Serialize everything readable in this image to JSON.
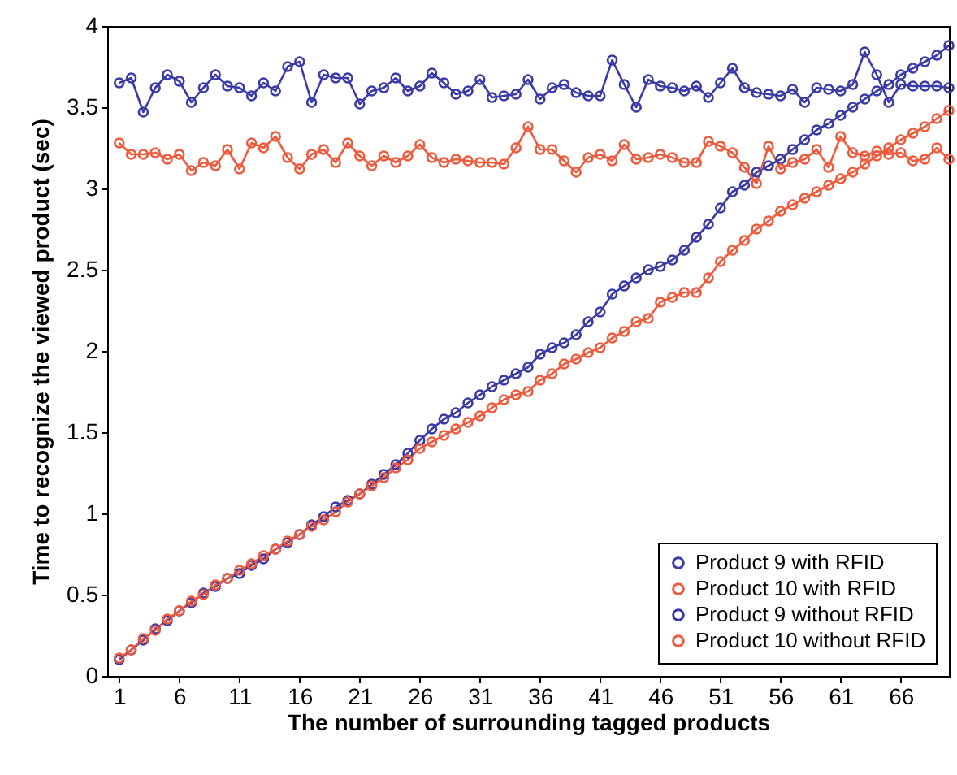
{
  "chart_data": {
    "type": "line",
    "xlabel": "The number of surrounding tagged products",
    "ylabel": "Time to recognize the viewed product (sec)",
    "x": [
      1,
      2,
      3,
      4,
      5,
      6,
      7,
      8,
      9,
      10,
      11,
      12,
      13,
      14,
      15,
      16,
      17,
      18,
      19,
      20,
      21,
      22,
      23,
      24,
      25,
      26,
      27,
      28,
      29,
      30,
      31,
      32,
      33,
      34,
      35,
      36,
      37,
      38,
      39,
      40,
      41,
      42,
      43,
      44,
      45,
      46,
      47,
      48,
      49,
      50,
      51,
      52,
      53,
      54,
      55,
      56,
      57,
      58,
      59,
      60,
      61,
      62,
      63,
      64,
      65,
      66,
      67,
      68,
      69,
      70
    ],
    "xlim": [
      0,
      70
    ],
    "xticks": [
      1,
      6,
      11,
      16,
      21,
      26,
      31,
      36,
      41,
      46,
      51,
      56,
      61,
      66
    ],
    "ylim": [
      0,
      4
    ],
    "yticks": [
      0,
      0.5,
      1,
      1.5,
      2,
      2.5,
      3,
      3.5,
      4
    ],
    "grid": false,
    "legend": "bottom right",
    "marker": "circle",
    "line_style": "solid",
    "series": [
      {
        "name": "Product 9 with RFID",
        "color": "#3a3aa8",
        "values": [
          0.1,
          0.16,
          0.22,
          0.29,
          0.34,
          0.4,
          0.45,
          0.51,
          0.55,
          0.6,
          0.63,
          0.68,
          0.72,
          0.78,
          0.82,
          0.87,
          0.93,
          0.98,
          1.04,
          1.08,
          1.12,
          1.18,
          1.24,
          1.3,
          1.37,
          1.45,
          1.52,
          1.58,
          1.62,
          1.68,
          1.73,
          1.78,
          1.82,
          1.86,
          1.9,
          1.98,
          2.02,
          2.05,
          2.1,
          2.18,
          2.24,
          2.35,
          2.4,
          2.45,
          2.5,
          2.52,
          2.56,
          2.62,
          2.7,
          2.78,
          2.88,
          2.98,
          3.02,
          3.1,
          3.14,
          3.18,
          3.24,
          3.3,
          3.36,
          3.4,
          3.45,
          3.5,
          3.55,
          3.6,
          3.64,
          3.7,
          3.74,
          3.78,
          3.82,
          3.88
        ]
      },
      {
        "name": "Product 10 with RFID",
        "color": "#f05a3c",
        "values": [
          0.11,
          0.16,
          0.23,
          0.28,
          0.35,
          0.4,
          0.46,
          0.5,
          0.56,
          0.6,
          0.65,
          0.69,
          0.74,
          0.78,
          0.83,
          0.87,
          0.92,
          0.96,
          1.01,
          1.07,
          1.12,
          1.17,
          1.22,
          1.28,
          1.33,
          1.4,
          1.44,
          1.48,
          1.52,
          1.56,
          1.6,
          1.65,
          1.7,
          1.73,
          1.75,
          1.82,
          1.86,
          1.92,
          1.95,
          1.99,
          2.02,
          2.08,
          2.12,
          2.18,
          2.2,
          2.3,
          2.33,
          2.36,
          2.36,
          2.45,
          2.55,
          2.62,
          2.68,
          2.75,
          2.8,
          2.86,
          2.9,
          2.94,
          2.98,
          3.02,
          3.06,
          3.1,
          3.15,
          3.2,
          3.25,
          3.3,
          3.34,
          3.38,
          3.43,
          3.48
        ]
      },
      {
        "name": "Product 9 without RFID",
        "color": "#3a3aa8",
        "values": [
          3.65,
          3.68,
          3.47,
          3.62,
          3.7,
          3.66,
          3.53,
          3.62,
          3.7,
          3.63,
          3.62,
          3.57,
          3.65,
          3.6,
          3.75,
          3.78,
          3.53,
          3.7,
          3.68,
          3.68,
          3.52,
          3.6,
          3.62,
          3.68,
          3.6,
          3.63,
          3.71,
          3.65,
          3.58,
          3.6,
          3.67,
          3.56,
          3.57,
          3.58,
          3.67,
          3.55,
          3.62,
          3.64,
          3.59,
          3.57,
          3.57,
          3.79,
          3.64,
          3.5,
          3.67,
          3.63,
          3.62,
          3.6,
          3.63,
          3.56,
          3.65,
          3.74,
          3.62,
          3.59,
          3.58,
          3.57,
          3.61,
          3.53,
          3.62,
          3.61,
          3.6,
          3.64,
          3.84,
          3.7,
          3.53,
          3.64,
          3.63,
          3.63,
          3.63,
          3.62
        ]
      },
      {
        "name": "Product 10 without RFID",
        "color": "#f05a3c",
        "values": [
          3.28,
          3.21,
          3.21,
          3.22,
          3.18,
          3.21,
          3.11,
          3.16,
          3.14,
          3.24,
          3.12,
          3.28,
          3.25,
          3.32,
          3.19,
          3.12,
          3.21,
          3.24,
          3.16,
          3.28,
          3.2,
          3.14,
          3.2,
          3.16,
          3.2,
          3.27,
          3.19,
          3.16,
          3.18,
          3.17,
          3.16,
          3.16,
          3.15,
          3.25,
          3.38,
          3.24,
          3.24,
          3.17,
          3.1,
          3.19,
          3.21,
          3.17,
          3.27,
          3.18,
          3.19,
          3.21,
          3.19,
          3.16,
          3.16,
          3.29,
          3.26,
          3.22,
          3.13,
          3.03,
          3.26,
          3.12,
          3.16,
          3.18,
          3.24,
          3.13,
          3.32,
          3.22,
          3.2,
          3.23,
          3.21,
          3.22,
          3.17,
          3.18,
          3.25,
          3.18
        ]
      }
    ]
  }
}
